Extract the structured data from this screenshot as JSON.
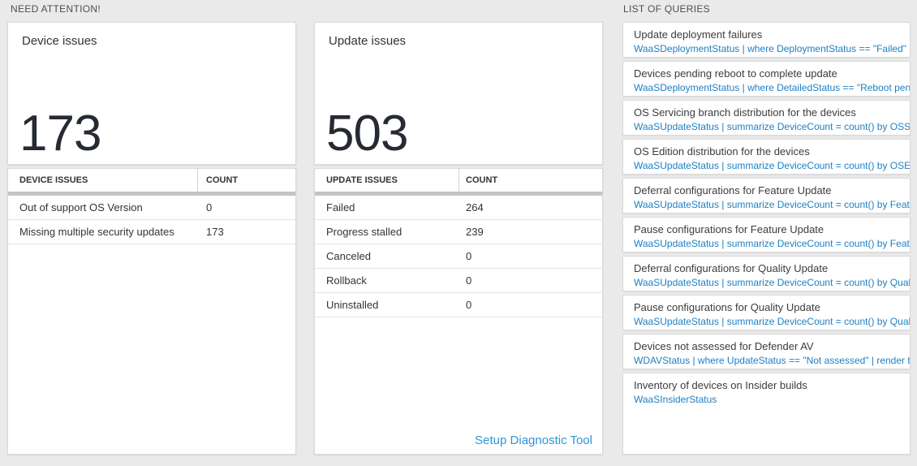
{
  "sections": {
    "need_attention": "NEED ATTENTION!",
    "list_of_queries": "LIST OF QUERIES"
  },
  "colors": {
    "page_bg": "#eaeaea",
    "card_bg": "#ffffff",
    "query_code_blue": "#1e7fc2",
    "link_blue": "#2e95d8",
    "big_number_text": "#262b33",
    "table_band_gray": "#c4c4c4"
  },
  "cards": [
    {
      "title": "Device issues",
      "big_number": "173",
      "table": {
        "headers": [
          "DEVICE ISSUES",
          "COUNT"
        ],
        "rows": [
          [
            "Out of support OS Version",
            "0"
          ],
          [
            "Missing multiple security updates",
            "173"
          ]
        ]
      }
    },
    {
      "title": "Update issues",
      "big_number": "503",
      "table": {
        "headers": [
          "UPDATE ISSUES",
          "COUNT"
        ],
        "rows": [
          [
            "Failed",
            "264"
          ],
          [
            "Progress stalled",
            "239"
          ],
          [
            "Canceled",
            "0"
          ],
          [
            "Rollback",
            "0"
          ],
          [
            "Uninstalled",
            "0"
          ]
        ]
      },
      "footer_link": "Setup Diagnostic Tool"
    }
  ],
  "queries": [
    {
      "title": "Update deployment failures",
      "code": "WaaSDeploymentStatus | where DeploymentStatus == \"Failed\" |..."
    },
    {
      "title": "Devices pending reboot to complete update",
      "code": "WaaSDeploymentStatus | where DetailedStatus == \"Reboot pend..."
    },
    {
      "title": "OS Servicing branch distribution for the devices",
      "code": "WaaSUpdateStatus | summarize DeviceCount = count() by OSSer..."
    },
    {
      "title": "OS Edition distribution for the devices",
      "code": "WaaSUpdateStatus | summarize DeviceCount = count() by OSEdit..."
    },
    {
      "title": "Deferral configurations for Feature Update",
      "code": "WaaSUpdateStatus | summarize DeviceCount = count() by Featur..."
    },
    {
      "title": "Pause configurations for Feature Update",
      "code": "WaaSUpdateStatus | summarize DeviceCount = count() by Featur..."
    },
    {
      "title": "Deferral configurations for Quality Update",
      "code": "WaaSUpdateStatus | summarize DeviceCount = count() by Qualit..."
    },
    {
      "title": "Pause configurations for Quality Update",
      "code": "WaaSUpdateStatus | summarize DeviceCount = count() by Qualit..."
    },
    {
      "title": "Devices not assessed for Defender AV",
      "code": "WDAVStatus | where UpdateStatus == \"Not assessed\" | render ta..."
    },
    {
      "title": "Inventory of devices on Insider builds",
      "code": "WaaSInsiderStatus"
    }
  ]
}
